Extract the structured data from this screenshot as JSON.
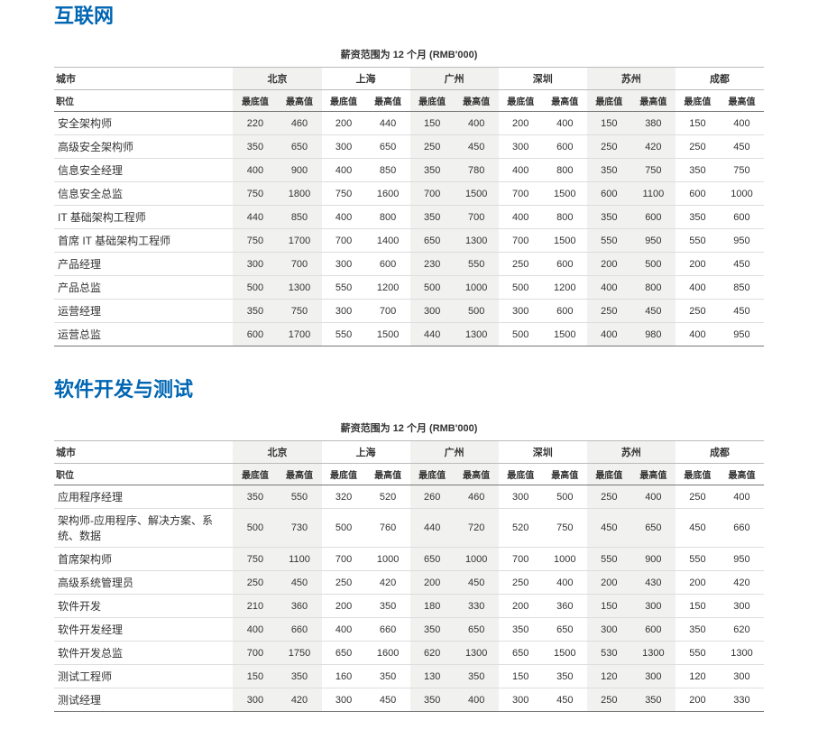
{
  "caption": "薪资范围为 12 个月 (RMB'000)",
  "header_city_label": "城市",
  "header_role_label": "职位",
  "cities": [
    "北京",
    "上海",
    "广州",
    "深圳",
    "苏州",
    "成都"
  ],
  "subheaders": [
    "最底值",
    "最高值"
  ],
  "sections": [
    {
      "title": "互联网",
      "rows": [
        {
          "role": "安全架构师",
          "vals": [
            220,
            460,
            200,
            440,
            150,
            400,
            200,
            400,
            150,
            380,
            150,
            400
          ]
        },
        {
          "role": "高级安全架构师",
          "vals": [
            350,
            650,
            300,
            650,
            250,
            450,
            300,
            600,
            250,
            420,
            250,
            450
          ]
        },
        {
          "role": "信息安全经理",
          "vals": [
            400,
            900,
            400,
            850,
            350,
            780,
            400,
            800,
            350,
            750,
            350,
            750
          ]
        },
        {
          "role": "信息安全总监",
          "vals": [
            750,
            1800,
            750,
            1600,
            700,
            1500,
            700,
            1500,
            600,
            1100,
            600,
            1000
          ]
        },
        {
          "role": "IT 基础架构工程师",
          "vals": [
            440,
            850,
            400,
            800,
            350,
            700,
            400,
            800,
            350,
            600,
            350,
            600
          ]
        },
        {
          "role": "首席 IT 基础架构工程师",
          "vals": [
            750,
            1700,
            700,
            1400,
            650,
            1300,
            700,
            1500,
            550,
            950,
            550,
            950
          ]
        },
        {
          "role": "产品经理",
          "vals": [
            300,
            700,
            300,
            600,
            230,
            550,
            250,
            600,
            200,
            500,
            200,
            450
          ]
        },
        {
          "role": "产品总监",
          "vals": [
            500,
            1300,
            550,
            1200,
            500,
            1000,
            500,
            1200,
            400,
            800,
            400,
            850
          ]
        },
        {
          "role": "运营经理",
          "vals": [
            350,
            750,
            300,
            700,
            300,
            500,
            300,
            600,
            250,
            450,
            250,
            450
          ]
        },
        {
          "role": "运营总监",
          "vals": [
            600,
            1700,
            550,
            1500,
            440,
            1300,
            500,
            1500,
            400,
            980,
            400,
            950
          ]
        }
      ]
    },
    {
      "title": "软件开发与测试",
      "rows": [
        {
          "role": "应用程序经理",
          "vals": [
            350,
            550,
            320,
            520,
            260,
            460,
            300,
            500,
            250,
            400,
            250,
            400
          ]
        },
        {
          "role": "架构师-应用程序、解决方案、系统、数据",
          "vals": [
            500,
            730,
            500,
            760,
            440,
            720,
            520,
            750,
            450,
            650,
            450,
            660
          ]
        },
        {
          "role": "首席架构师",
          "vals": [
            750,
            1100,
            700,
            1000,
            650,
            1000,
            700,
            1000,
            550,
            900,
            550,
            950
          ]
        },
        {
          "role": "高级系统管理员",
          "vals": [
            250,
            450,
            250,
            420,
            200,
            450,
            250,
            400,
            200,
            430,
            200,
            420
          ]
        },
        {
          "role": "软件开发",
          "vals": [
            210,
            360,
            200,
            350,
            180,
            330,
            200,
            360,
            150,
            300,
            150,
            300
          ]
        },
        {
          "role": "软件开发经理",
          "vals": [
            400,
            660,
            400,
            660,
            350,
            650,
            350,
            650,
            300,
            600,
            350,
            620
          ]
        },
        {
          "role": "软件开发总监",
          "vals": [
            700,
            1750,
            650,
            1600,
            620,
            1300,
            650,
            1500,
            530,
            1300,
            550,
            1300
          ]
        },
        {
          "role": "测试工程师",
          "vals": [
            150,
            350,
            160,
            350,
            130,
            350,
            150,
            350,
            120,
            300,
            120,
            300
          ]
        },
        {
          "role": "测试经理",
          "vals": [
            300,
            420,
            300,
            450,
            350,
            400,
            300,
            450,
            250,
            350,
            200,
            330
          ]
        }
      ]
    }
  ],
  "shade_city_indices": [
    0,
    2,
    4
  ],
  "colors": {
    "title": "#0066b3",
    "text": "#333",
    "border_light": "#ddd",
    "border_dark": "#777",
    "shade": "#f1f1ef"
  }
}
